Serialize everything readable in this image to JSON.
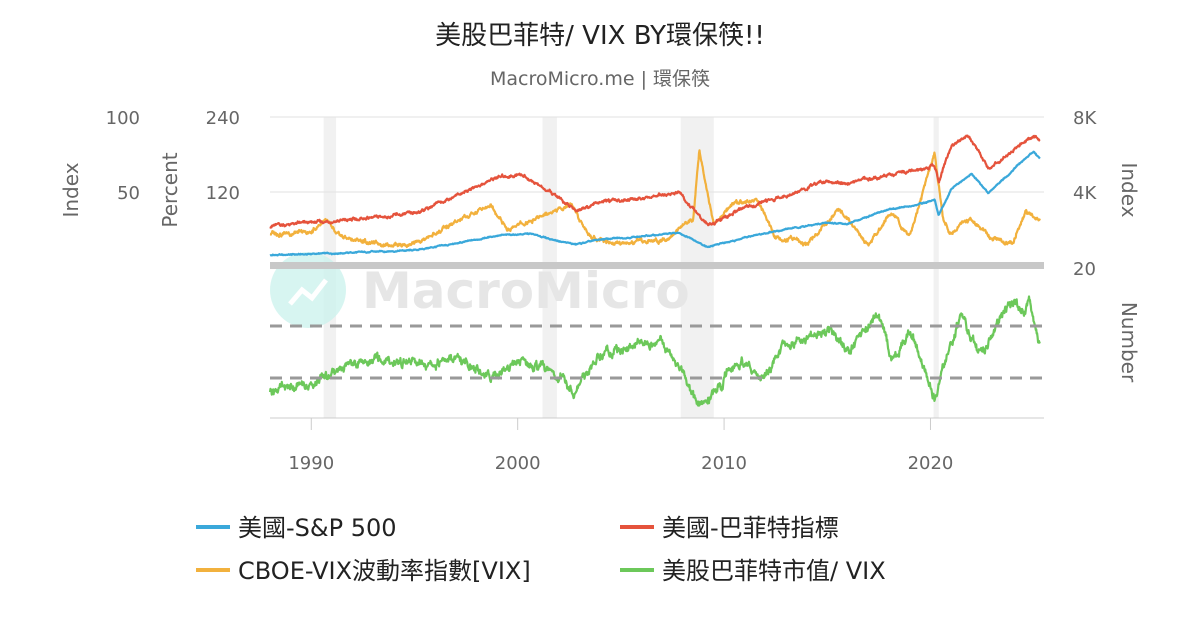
{
  "chart_data": {
    "type": "line",
    "title": "美股巴菲特/ VIX BY環保筷!!",
    "subtitle": "MacroMicro.me | 環保筷",
    "watermark": "MacroMicro",
    "x_ticks": [
      1990,
      2000,
      2010,
      2020
    ],
    "xlim": [
      1988.0,
      2025.5
    ],
    "recessions": [
      [
        1990.6,
        1991.2
      ],
      [
        2001.2,
        2001.9
      ],
      [
        2007.9,
        2009.5
      ],
      [
        2020.15,
        2020.4
      ]
    ],
    "axes": {
      "left_outer": {
        "title": "Index",
        "ticks": [
          "100",
          "50"
        ],
        "ylim": [
          0,
          100
        ]
      },
      "left_inner": {
        "title": "Percent",
        "ticks": [
          "240",
          "120"
        ],
        "ylim": [
          0,
          240
        ]
      },
      "right_top": {
        "title": "Index",
        "ticks": [
          "8K",
          "4K"
        ],
        "ylim": [
          0,
          8000
        ]
      },
      "right_vix": {
        "ticks": [
          "20"
        ]
      },
      "right_bottom": {
        "title": "Number"
      }
    },
    "reference_lines": {
      "bottom_panel": [
        "dashed",
        "dashed"
      ]
    },
    "series": [
      {
        "name": "美國-S&P 500",
        "color": "#3aa8da",
        "axis": "right_top",
        "panel": "top",
        "x": [
          1988,
          1990,
          1992,
          1995,
          1997,
          1999,
          2000.6,
          2001.8,
          2002.8,
          2004,
          2006,
          2007.8,
          2008.5,
          2009.2,
          2011,
          2013,
          2015,
          2016,
          2018,
          2019,
          2020.2,
          2020.4,
          2021,
          2022.0,
          2022.8,
          2023.5,
          2024.2,
          2025.0,
          2025.3
        ],
        "y": [
          260,
          330,
          410,
          540,
          900,
          1350,
          1450,
          1100,
          850,
          1130,
          1300,
          1500,
          1150,
          700,
          1250,
          1700,
          2050,
          2000,
          2800,
          2950,
          3300,
          2450,
          3900,
          4750,
          3700,
          4400,
          5200,
          6000,
          5600
        ]
      },
      {
        "name": "美國-巴菲特指標",
        "color": "#e5533c",
        "axis": "left_inner",
        "panel": "top",
        "x": [
          1988,
          1990,
          1992,
          1995,
          1997,
          1999,
          2000.2,
          2001.8,
          2002.8,
          2004,
          2006,
          2007.8,
          2009.2,
          2011,
          2013,
          2015,
          2016,
          2018,
          2019,
          2020.2,
          2020.4,
          2021,
          2021.8,
          2022.8,
          2023.5,
          2024.2,
          2025.0,
          2025.3
        ],
        "y": [
          60,
          65,
          70,
          80,
          110,
          140,
          145,
          110,
          85,
          100,
          105,
          115,
          60,
          90,
          110,
          135,
          130,
          145,
          150,
          160,
          135,
          190,
          210,
          155,
          170,
          190,
          210,
          200
        ]
      },
      {
        "name": "CBOE-VIX波動率指數[VIX]",
        "color": "#f2b13d",
        "axis": "left_outer",
        "panel": "top",
        "x": [
          1988,
          1990,
          1990.7,
          1991.2,
          1993,
          1995,
          1997.8,
          1998.7,
          1999.5,
          2001.7,
          2002.6,
          2003.5,
          2005,
          2007,
          2008.5,
          2008.8,
          2009.5,
          2010.4,
          2011.6,
          2012.5,
          2014,
          2015.6,
          2017,
          2018.1,
          2019,
          2020.2,
          2020.6,
          2021,
          2022,
          2023,
          2024,
          2024.6,
          2025.3
        ],
        "y": [
          20,
          20,
          30,
          18,
          13,
          12,
          33,
          40,
          22,
          35,
          40,
          18,
          12,
          15,
          30,
          78,
          25,
          40,
          43,
          17,
          13,
          37,
          11,
          35,
          17,
          75,
          30,
          20,
          30,
          15,
          13,
          35,
          28
        ]
      },
      {
        "name": "美股巴菲特市值/ VIX",
        "color": "#6cc85a",
        "axis": "right_bottom",
        "panel": "bottom",
        "x": [
          1988,
          1990,
          1991.5,
          1993,
          1995,
          1997,
          1998.7,
          2000,
          2001.5,
          2002.7,
          2004,
          2005.5,
          2007,
          2008,
          2008.8,
          2009.8,
          2011,
          2011.8,
          2013,
          2015,
          2016,
          2017.5,
          2018.1,
          2019,
          2020.2,
          2020.8,
          2021.5,
          2022.3,
          2023.2,
          2024.0,
          2024.5,
          2024.8,
          2025.3
        ],
        "y": [
          0.9,
          1.1,
          1.75,
          2.05,
          1.95,
          2.05,
          1.45,
          2.0,
          1.7,
          0.8,
          2.3,
          2.6,
          2.8,
          1.6,
          0.15,
          1.1,
          2.1,
          1.2,
          2.8,
          3.2,
          2.4,
          4.0,
          2.1,
          3.3,
          0.6,
          2.2,
          3.9,
          2.2,
          3.4,
          4.4,
          4.0,
          4.4,
          2.6
        ]
      }
    ],
    "legend": [
      {
        "label": "美國-S&P 500",
        "color": "#3aa8da"
      },
      {
        "label": "美國-巴菲特指標",
        "color": "#e5533c"
      },
      {
        "label": "CBOE-VIX波動率指數[VIX]",
        "color": "#f2b13d"
      },
      {
        "label": "美股巴菲特市值/ VIX",
        "color": "#6cc85a"
      }
    ]
  }
}
